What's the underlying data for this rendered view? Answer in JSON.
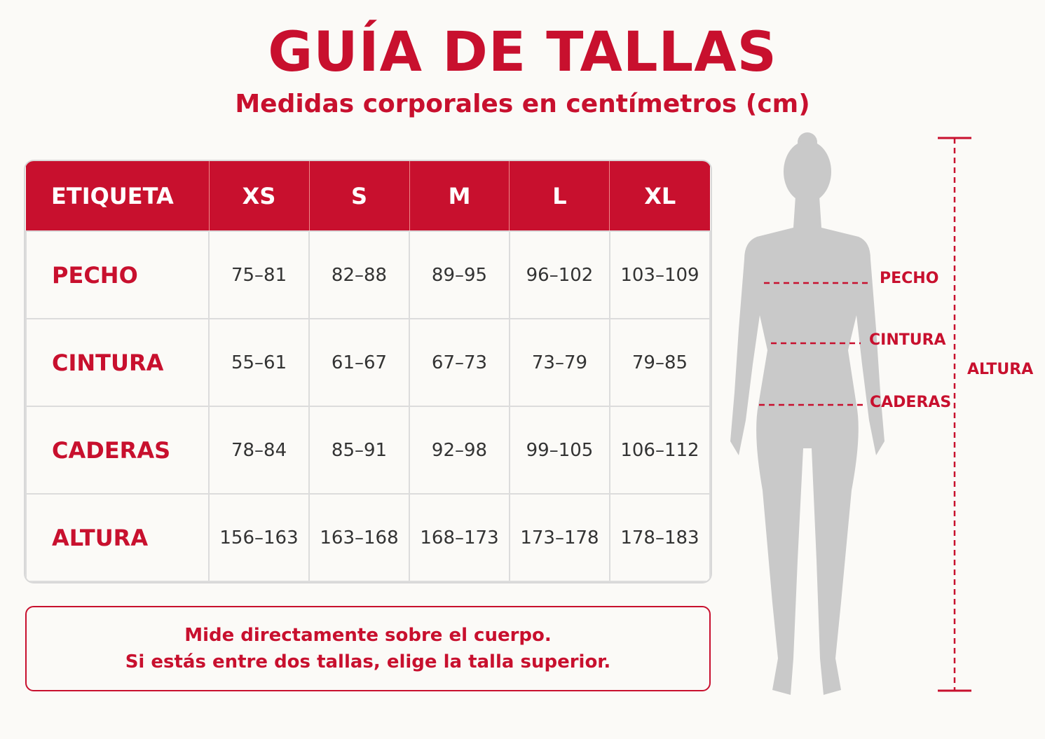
{
  "header": {
    "title": "GUÍA DE TALLAS",
    "subtitle": "Medidas corporales en centímetros (cm)"
  },
  "table": {
    "columns": [
      "ETIQUETA",
      "XS",
      "S",
      "M",
      "L",
      "XL"
    ],
    "rows": [
      [
        "PECHO",
        "75–81",
        "82–88",
        "89–95",
        "96–102",
        "103–109"
      ],
      [
        "CINTURA",
        "55–61",
        "61–67",
        "67–73",
        "73–79",
        "79–85"
      ],
      [
        "CADERAS",
        "78–84",
        "85–91",
        "92–98",
        "99–105",
        "106–112"
      ],
      [
        "ALTURA",
        "156–163",
        "163–168",
        "168–173",
        "173–178",
        "178–183"
      ]
    ]
  },
  "note": {
    "lines": [
      "Mide directamente sobre el cuerpo.",
      "Si estás entre dos tallas, elige la talla superior."
    ]
  },
  "figure": {
    "labels": [
      "PECHO",
      "CINTURA",
      "CADERAS"
    ],
    "height_label": "ALTURA"
  }
}
